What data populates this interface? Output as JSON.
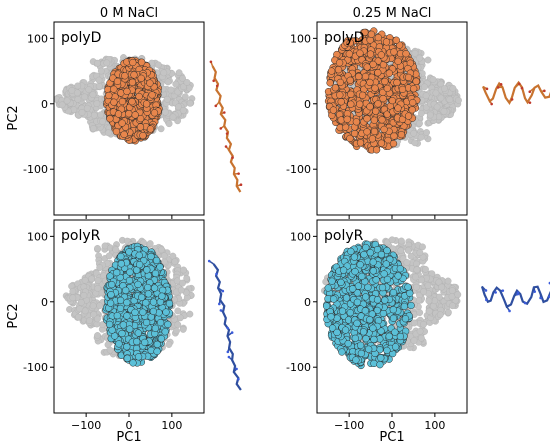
{
  "figure": {
    "col_titles": [
      "0 M NaCl",
      "0.25 M NaCl"
    ],
    "xlabel": "PC1",
    "ylabel": "PC2"
  },
  "chart_data": {
    "type": "scatter",
    "xlabel": "PC1",
    "ylabel": "PC2",
    "xlim": [
      -175,
      175
    ],
    "ylim": [
      -170,
      125
    ],
    "xticks": [
      -100,
      0,
      100
    ],
    "yticks": [
      100,
      0,
      -100
    ],
    "background_series_color": "#c4c4c4",
    "grid": false,
    "panels": [
      {
        "column": "0 M NaCl",
        "row": 0,
        "label": "polyD",
        "color": "#e8864c",
        "background": {
          "cx": -10,
          "cy": 12,
          "rx": 160,
          "ry": 60,
          "tail": "left"
        },
        "highlight": {
          "cx": 10,
          "cy": 5,
          "rx": 62,
          "ry": 62
        },
        "structure": "extended"
      },
      {
        "column": "0.25 M NaCl",
        "row": 0,
        "label": "polyD",
        "color": "#e8864c",
        "background": {
          "cx": 10,
          "cy": 10,
          "rx": 150,
          "ry": 75,
          "tail": "right"
        },
        "highlight": {
          "cx": -45,
          "cy": 20,
          "rx": 105,
          "ry": 92
        },
        "structure": "compact"
      },
      {
        "column": "0 M NaCl",
        "row": 1,
        "label": "polyR",
        "color": "#5bc0d8",
        "background": {
          "cx": 0,
          "cy": 5,
          "rx": 150,
          "ry": 90,
          "tail": "left"
        },
        "highlight": {
          "cx": 20,
          "cy": -5,
          "rx": 75,
          "ry": 90
        },
        "structure": "extended"
      },
      {
        "column": "0.25 M NaCl",
        "row": 1,
        "label": "polyR",
        "color": "#5bc0d8",
        "background": {
          "cx": 0,
          "cy": 10,
          "rx": 160,
          "ry": 85,
          "tail": "right"
        },
        "highlight": {
          "cx": -55,
          "cy": -5,
          "rx": 100,
          "ry": 95
        },
        "structure": "compact"
      }
    ]
  }
}
